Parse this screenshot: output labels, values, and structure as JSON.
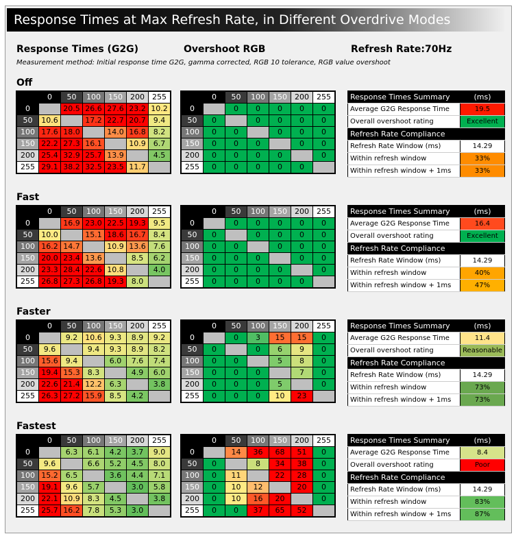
{
  "title": "Response Times at Max Refresh Rate, in Different Overdrive Modes",
  "header": {
    "response_times": "Response Times (G2G)",
    "overshoot": "Overshoot RGB",
    "refresh_label": "Refresh Rate:",
    "refresh_value": "70Hz",
    "method": "Measurement method: Initial response time G2G, gamma corrected, RGB 10 tolerance, RGB value overshoot"
  },
  "levels": [
    "0",
    "50",
    "100",
    "150",
    "200",
    "255"
  ],
  "summary_labels": {
    "summary": "Response Times Summary",
    "ms": "(ms)",
    "avg": "Average G2G Response Time",
    "overshoot": "Overall overshoot rating",
    "compliance": "Refresh Rate Compliance",
    "window": "Refresh Rate Window (ms)",
    "within": "Within refresh window",
    "within1": "Within refresh window + 1ms"
  },
  "chart_data": {
    "type": "heatmap",
    "modes": [
      {
        "name": "Off",
        "response": [
          [
            null,
            20.5,
            26.6,
            27.6,
            23.2,
            10.2
          ],
          [
            10.6,
            null,
            17.2,
            22.7,
            20.7,
            9.4
          ],
          [
            17.6,
            18.0,
            null,
            14.0,
            16.8,
            8.2
          ],
          [
            22.2,
            27.3,
            16.1,
            null,
            10.9,
            6.7
          ],
          [
            25.4,
            32.9,
            25.7,
            13.9,
            null,
            4.5
          ],
          [
            29.1,
            38.2,
            32.5,
            23.5,
            11.7,
            null
          ]
        ],
        "overshoot": [
          [
            null,
            0,
            0,
            0,
            0,
            0
          ],
          [
            0,
            null,
            0,
            0,
            0,
            0
          ],
          [
            0,
            0,
            null,
            0,
            0,
            0
          ],
          [
            0,
            0,
            0,
            null,
            0,
            0
          ],
          [
            0,
            0,
            0,
            0,
            null,
            0
          ],
          [
            0,
            0,
            0,
            0,
            0,
            null
          ]
        ],
        "summary": {
          "avg": "19.5",
          "avg_color": "#ff1a00",
          "rating": "Excellent",
          "rating_color": "#00b050",
          "window": "14.29",
          "within": "33%",
          "within_color": "#ff8c00",
          "within1": "33%",
          "within1_color": "#ff8c00"
        }
      },
      {
        "name": "Fast",
        "response": [
          [
            null,
            16.9,
            23.0,
            22.5,
            19.3,
            9.5
          ],
          [
            10.0,
            null,
            15.1,
            18.6,
            16.7,
            8.4
          ],
          [
            16.2,
            14.7,
            null,
            10.9,
            13.6,
            7.6
          ],
          [
            20.0,
            23.4,
            13.6,
            null,
            8.5,
            6.2
          ],
          [
            23.3,
            28.4,
            22.6,
            10.8,
            null,
            4.0
          ],
          [
            26.8,
            27.3,
            26.8,
            19.3,
            8.0,
            null
          ]
        ],
        "overshoot": [
          [
            null,
            0,
            0,
            0,
            0,
            0
          ],
          [
            0,
            null,
            0,
            0,
            0,
            0
          ],
          [
            0,
            0,
            null,
            0,
            0,
            0
          ],
          [
            0,
            0,
            0,
            null,
            0,
            0
          ],
          [
            0,
            0,
            0,
            0,
            null,
            0
          ],
          [
            0,
            0,
            0,
            0,
            0,
            null
          ]
        ],
        "summary": {
          "avg": "16.4",
          "avg_color": "#ff4a1e",
          "rating": "Excellent",
          "rating_color": "#00b050",
          "window": "14.29",
          "within": "40%",
          "within_color": "#ffa500",
          "within1": "47%",
          "within1_color": "#ffb000"
        }
      },
      {
        "name": "Faster",
        "response": [
          [
            null,
            9.2,
            10.6,
            9.3,
            8.9,
            9.2
          ],
          [
            9.6,
            null,
            9.4,
            9.3,
            8.9,
            8.2
          ],
          [
            15.6,
            9.4,
            null,
            6.0,
            7.6,
            7.4
          ],
          [
            19.4,
            15.3,
            8.3,
            null,
            4.9,
            6.0
          ],
          [
            22.6,
            21.4,
            12.2,
            6.3,
            null,
            3.8
          ],
          [
            26.3,
            27.2,
            15.9,
            8.5,
            4.2,
            null
          ]
        ],
        "overshoot": [
          [
            null,
            0,
            3,
            15,
            15,
            0
          ],
          [
            0,
            null,
            0,
            6,
            9,
            0
          ],
          [
            0,
            0,
            null,
            5,
            8,
            0
          ],
          [
            0,
            0,
            0,
            null,
            7,
            0
          ],
          [
            0,
            0,
            0,
            5,
            null,
            0
          ],
          [
            0,
            0,
            0,
            10,
            23,
            null
          ]
        ],
        "summary": {
          "avg": "11.4",
          "avg_color": "#ffe38a",
          "rating": "Reasonable",
          "rating_color": "#9bbb59",
          "window": "14.29",
          "within": "73%",
          "within_color": "#6aa84f",
          "within1": "73%",
          "within1_color": "#6aa84f"
        }
      },
      {
        "name": "Fastest",
        "response": [
          [
            null,
            6.3,
            6.1,
            4.2,
            3.7,
            9.0
          ],
          [
            9.6,
            null,
            6.6,
            5.2,
            4.5,
            8.0
          ],
          [
            15.2,
            6.5,
            null,
            3.6,
            4.4,
            7.1
          ],
          [
            19.1,
            9.6,
            5.7,
            null,
            3.0,
            5.8
          ],
          [
            22.1,
            10.9,
            8.3,
            4.5,
            null,
            3.8
          ],
          [
            25.7,
            16.2,
            7.8,
            5.3,
            3.0,
            null
          ]
        ],
        "overshoot": [
          [
            null,
            14,
            36,
            68,
            51,
            0
          ],
          [
            0,
            null,
            8,
            34,
            38,
            0
          ],
          [
            0,
            11,
            null,
            22,
            28,
            0
          ],
          [
            0,
            10,
            12,
            null,
            20,
            0
          ],
          [
            0,
            10,
            16,
            20,
            null,
            0
          ],
          [
            0,
            0,
            37,
            65,
            52,
            null
          ]
        ],
        "summary": {
          "avg": "8.4",
          "avg_color": "#d6e38a",
          "rating": "Poor",
          "rating_color": "#ff0000",
          "window": "14.29",
          "within": "83%",
          "within_color": "#63be5b",
          "within1": "87%",
          "within1_color": "#63be5b"
        }
      }
    ]
  }
}
